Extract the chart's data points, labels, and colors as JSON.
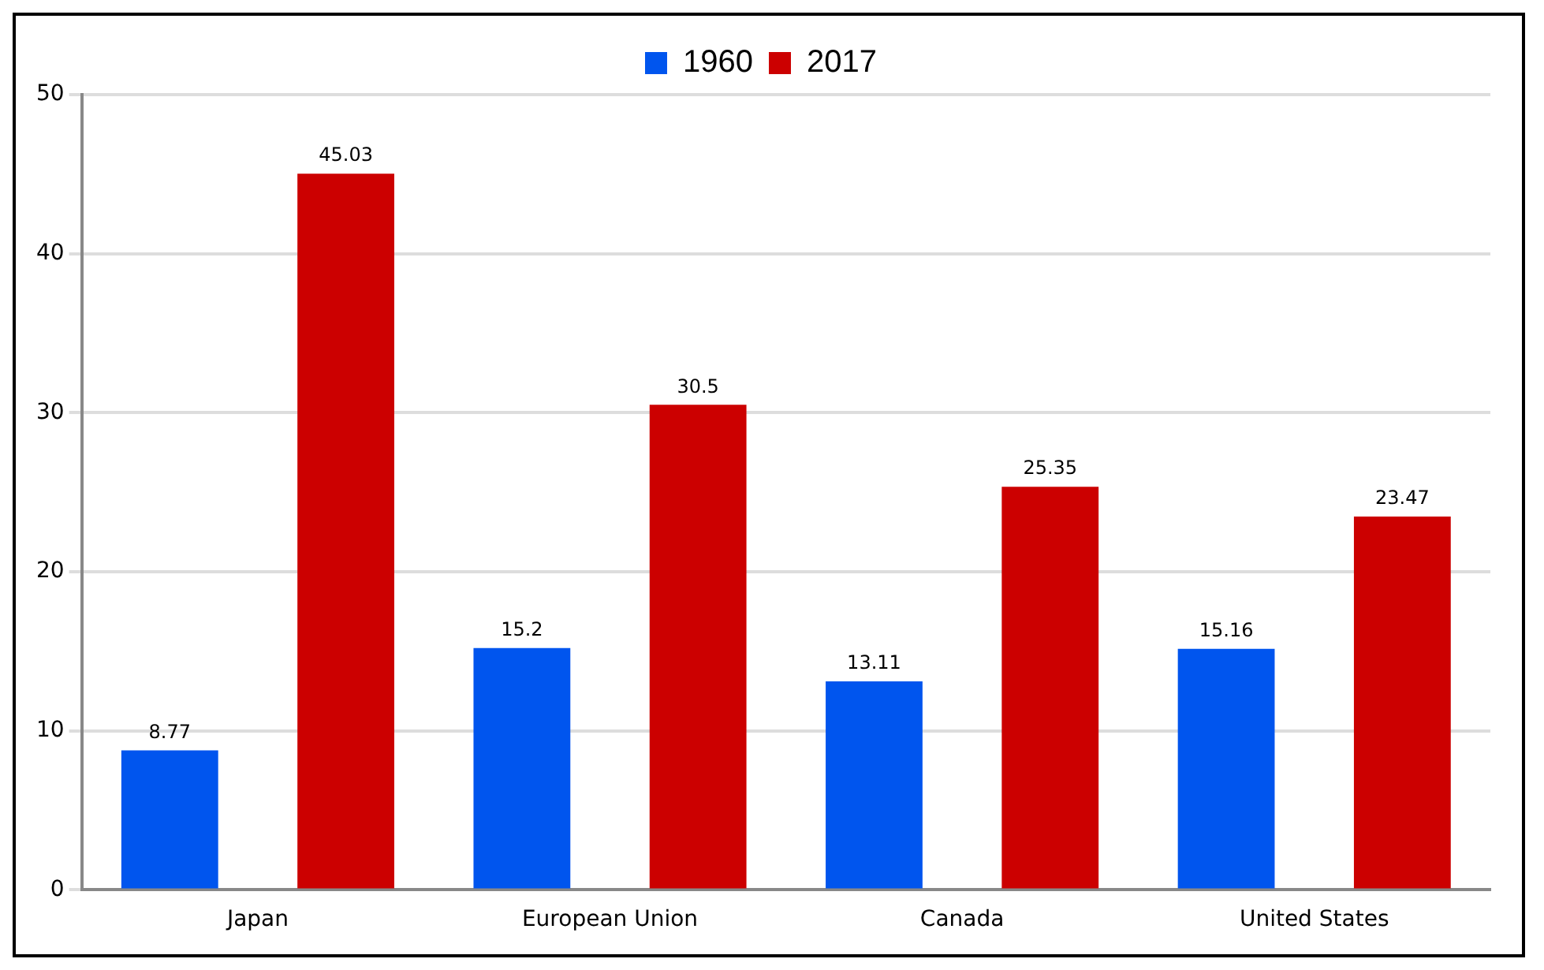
{
  "chart_data": {
    "type": "bar",
    "categories": [
      "Japan",
      "European Union",
      "Canada",
      "United States"
    ],
    "series": [
      {
        "name": "1960",
        "color": "#0055ee",
        "values": [
          8.77,
          15.2,
          13.11,
          15.16
        ]
      },
      {
        "name": "2017",
        "color": "#cc0000",
        "values": [
          45.03,
          30.5,
          25.35,
          23.47
        ]
      }
    ],
    "ylim": [
      0,
      50
    ],
    "yticks": [
      0,
      10,
      20,
      30,
      40,
      50
    ],
    "grid": "y",
    "legend": "top",
    "data_labels": true
  }
}
